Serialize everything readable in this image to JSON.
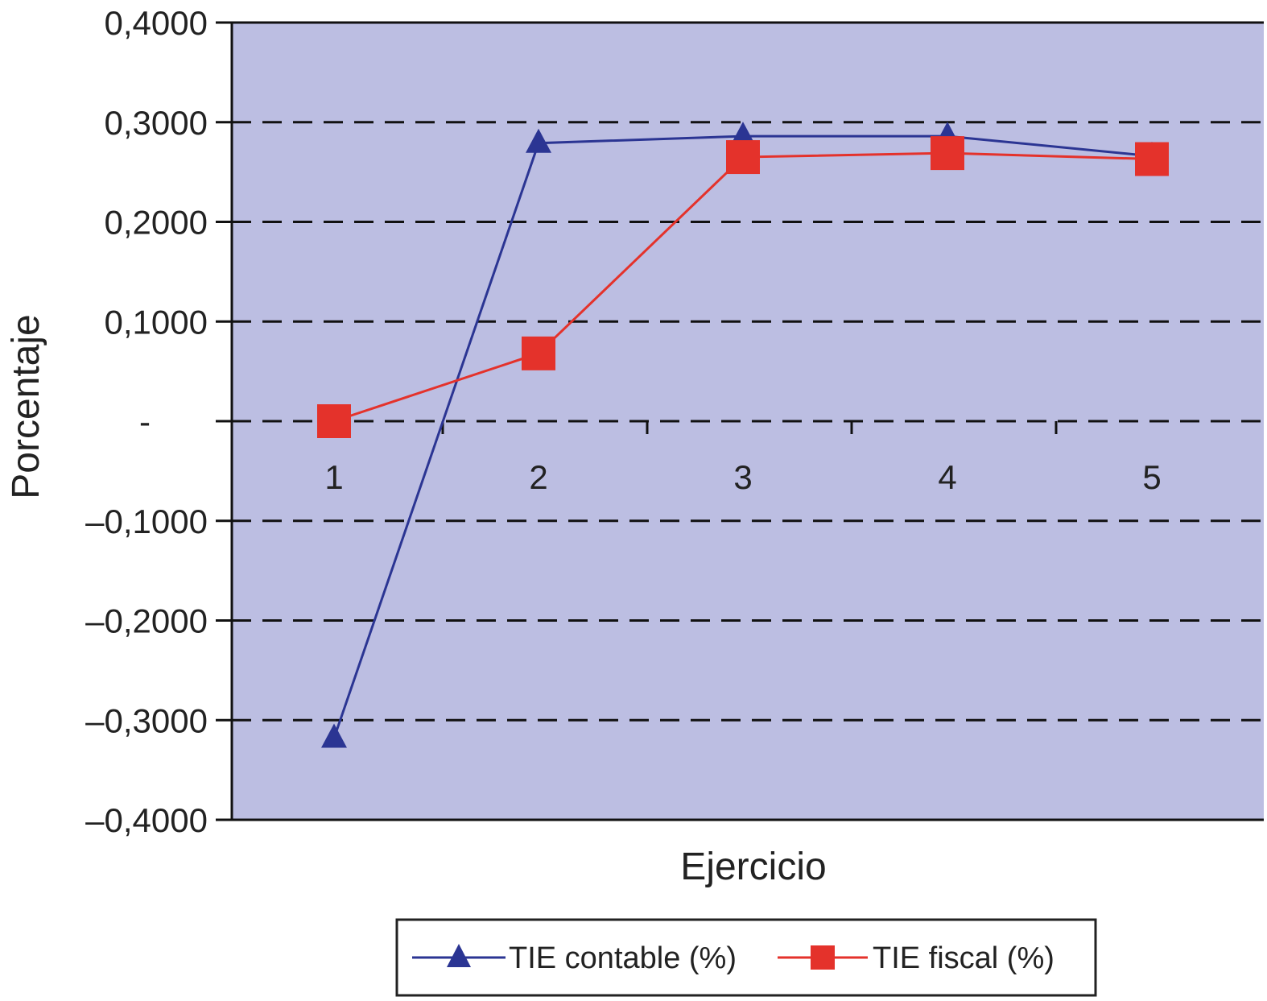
{
  "chart_data": {
    "type": "line",
    "title": "",
    "xlabel": "Ejercicio",
    "ylabel": "Porcentaje",
    "categories": [
      "1",
      "2",
      "3",
      "4",
      "5"
    ],
    "ylim": [
      -0.4,
      0.4
    ],
    "yticks": [
      0.4,
      0.3,
      0.2,
      0.1,
      0,
      -0.1,
      -0.2,
      -0.3,
      -0.4
    ],
    "ytick_labels": [
      "0,4000",
      "0,3000",
      "0,2000",
      "0,1000",
      "-",
      "–0,1000",
      "–0,2000",
      "–0,3000",
      "–0,4000"
    ],
    "grid": "horizontal dashed",
    "legend_position": "bottom",
    "plot_background": "#bcbee2",
    "series": [
      {
        "name": "TIE contable (%)",
        "values": [
          -0.318,
          0.279,
          0.286,
          0.286,
          0.266
        ],
        "color": "#2b3593",
        "marker": "triangle"
      },
      {
        "name": "TIE fiscal (%)",
        "values": [
          0.0,
          0.068,
          0.265,
          0.269,
          0.263
        ],
        "color": "#e4322b",
        "marker": "square"
      }
    ]
  }
}
